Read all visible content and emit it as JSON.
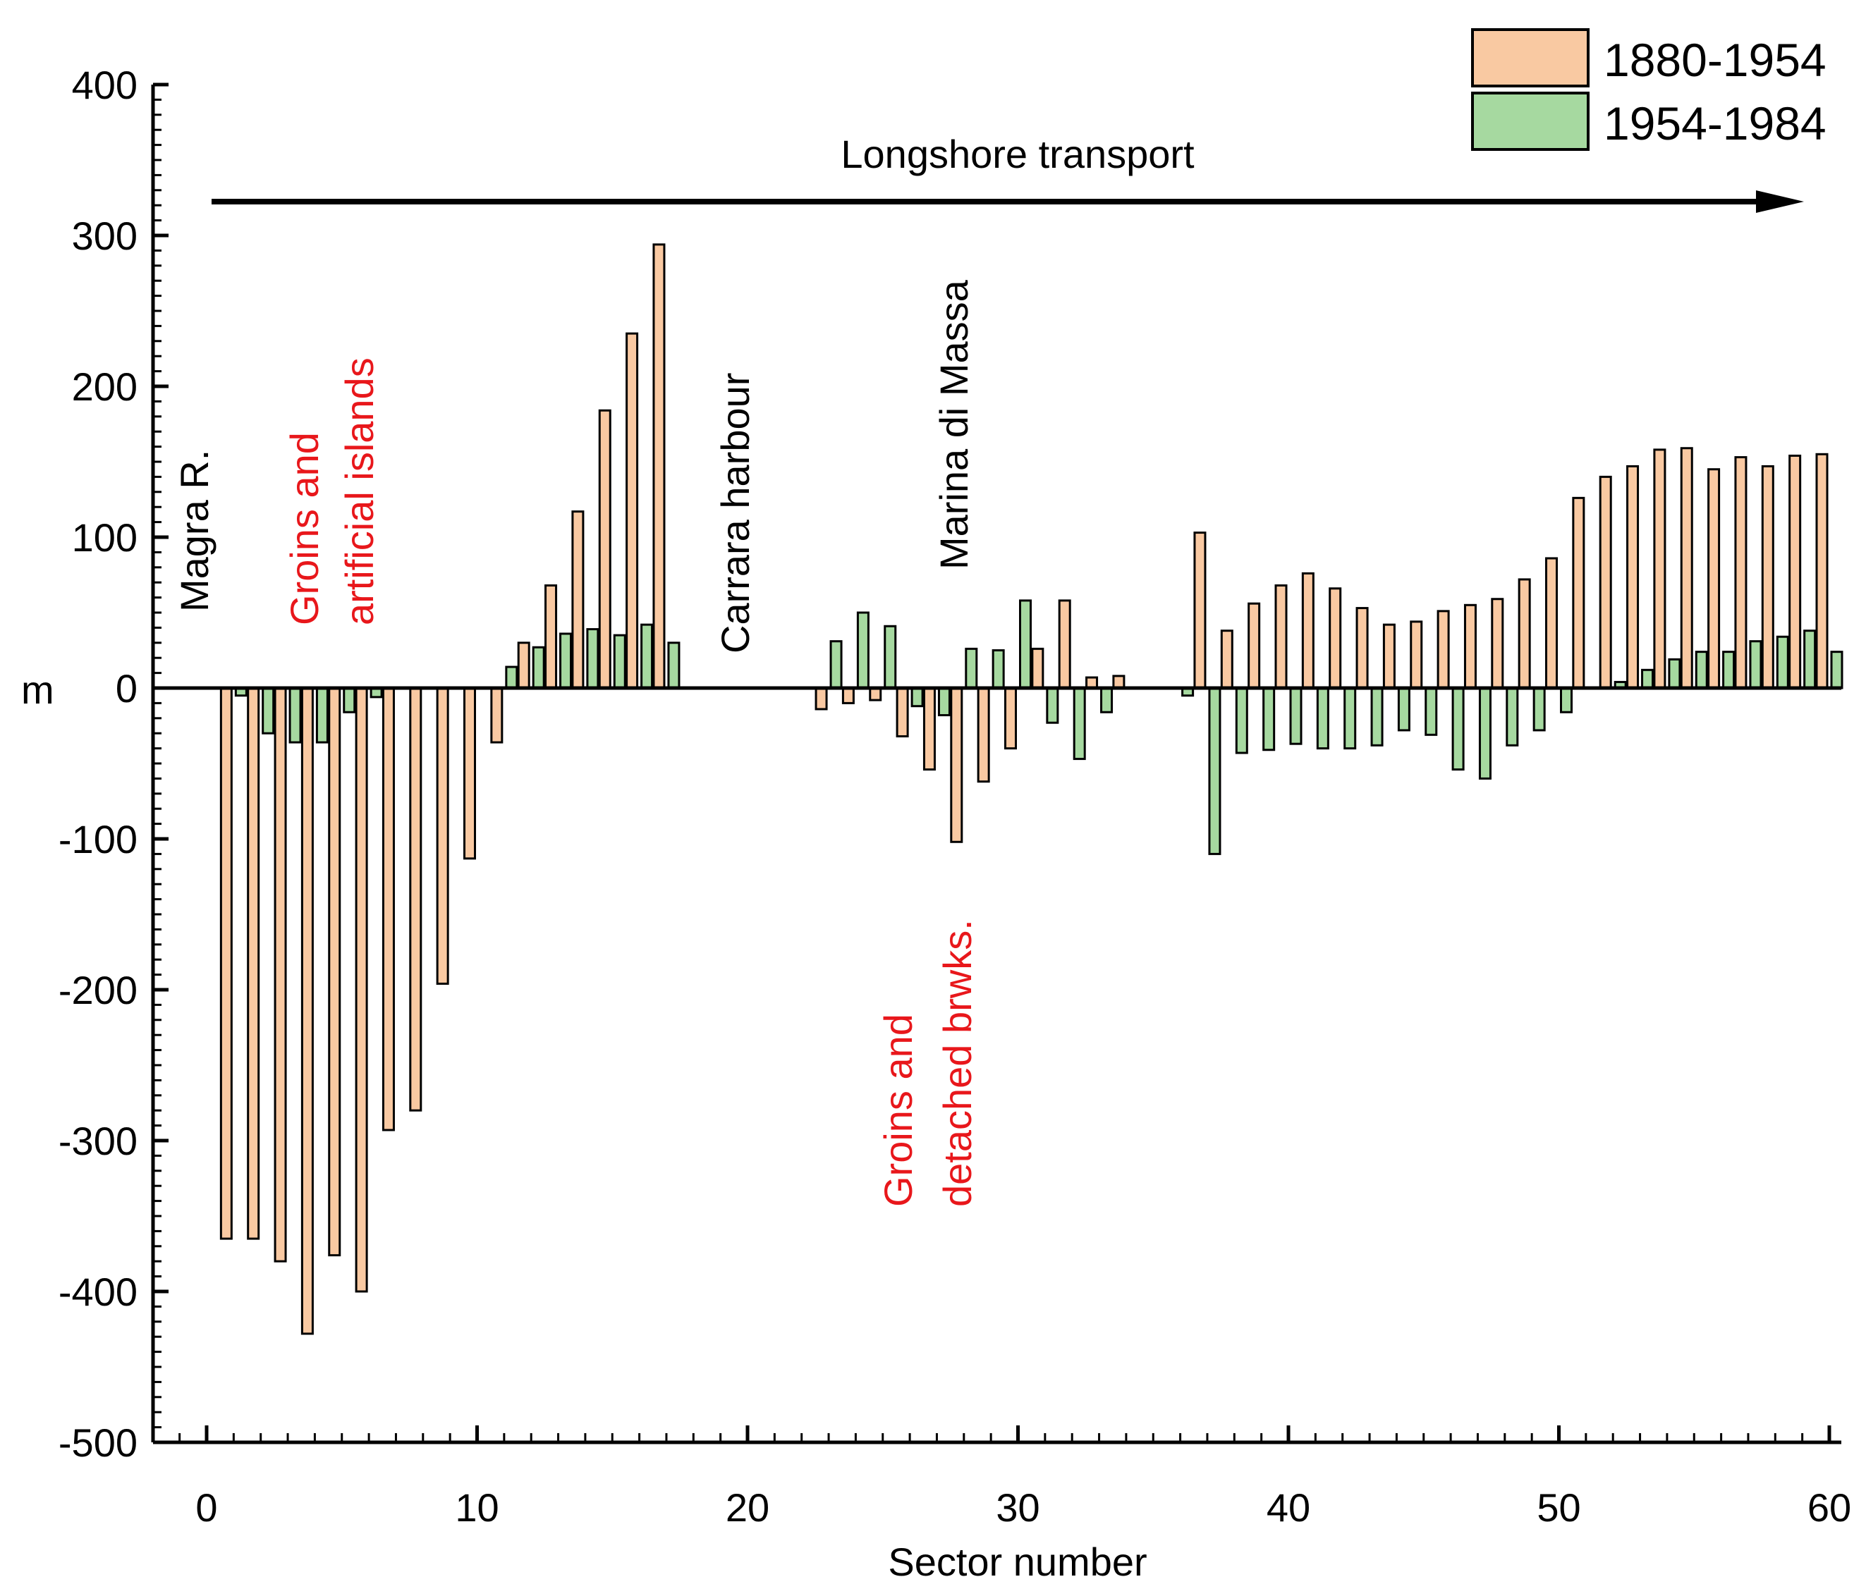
{
  "chart_data": {
    "type": "bar",
    "xlabel": "Sector number",
    "ylabel": "m",
    "xlim": [
      -2,
      60.5
    ],
    "ylim": [
      -500,
      400
    ],
    "xticks": [
      0,
      10,
      20,
      30,
      40,
      50,
      60
    ],
    "yticks": [
      -500,
      -400,
      -300,
      -200,
      -100,
      0,
      100,
      200,
      300,
      400
    ],
    "x_tick_labels": [
      "0",
      "10",
      "20",
      "30",
      "40",
      "50",
      "60"
    ],
    "y_tick_labels": [
      "-500",
      "-400",
      "-300",
      "-200",
      "-100",
      "0",
      "100",
      "200",
      "300",
      "400"
    ],
    "legend": {
      "position": "top-right",
      "entries": [
        "1880-1954",
        "1954-1984"
      ]
    },
    "colors": {
      "s1880": "#f9c9a2",
      "s1954": "#a6d9a0",
      "edge": "#000000"
    },
    "series": [
      {
        "name": "1880-1954",
        "values": [
          {
            "x": 1,
            "y": -365
          },
          {
            "x": 2,
            "y": -365
          },
          {
            "x": 3,
            "y": -380
          },
          {
            "x": 4,
            "y": -428
          },
          {
            "x": 5,
            "y": -376
          },
          {
            "x": 6,
            "y": -400
          },
          {
            "x": 7,
            "y": -293
          },
          {
            "x": 8,
            "y": -280
          },
          {
            "x": 9,
            "y": -196
          },
          {
            "x": 10,
            "y": -113
          },
          {
            "x": 11,
            "y": -36
          },
          {
            "x": 12,
            "y": 30
          },
          {
            "x": 13,
            "y": 68
          },
          {
            "x": 14,
            "y": 117
          },
          {
            "x": 15,
            "y": 184
          },
          {
            "x": 16,
            "y": 235
          },
          {
            "x": 17,
            "y": 294
          },
          {
            "x": 23,
            "y": -14
          },
          {
            "x": 24,
            "y": -10
          },
          {
            "x": 25,
            "y": -8
          },
          {
            "x": 26,
            "y": -32
          },
          {
            "x": 27,
            "y": -54
          },
          {
            "x": 28,
            "y": -102
          },
          {
            "x": 29,
            "y": -62
          },
          {
            "x": 30,
            "y": -40
          },
          {
            "x": 31,
            "y": 26
          },
          {
            "x": 32,
            "y": 58
          },
          {
            "x": 33,
            "y": 7
          },
          {
            "x": 34,
            "y": 8
          },
          {
            "x": 37,
            "y": 103
          },
          {
            "x": 38,
            "y": 38
          },
          {
            "x": 39,
            "y": 56
          },
          {
            "x": 40,
            "y": 68
          },
          {
            "x": 41,
            "y": 76
          },
          {
            "x": 42,
            "y": 66
          },
          {
            "x": 43,
            "y": 53
          },
          {
            "x": 44,
            "y": 42
          },
          {
            "x": 45,
            "y": 44
          },
          {
            "x": 46,
            "y": 51
          },
          {
            "x": 47,
            "y": 55
          },
          {
            "x": 48,
            "y": 59
          },
          {
            "x": 49,
            "y": 72
          },
          {
            "x": 50,
            "y": 86
          },
          {
            "x": 51,
            "y": 126
          },
          {
            "x": 52,
            "y": 140
          },
          {
            "x": 53,
            "y": 147
          },
          {
            "x": 54,
            "y": 158
          },
          {
            "x": 55,
            "y": 159
          },
          {
            "x": 56,
            "y": 145
          },
          {
            "x": 57,
            "y": 153
          },
          {
            "x": 58,
            "y": 147
          },
          {
            "x": 59,
            "y": 154
          },
          {
            "x": 60,
            "y": 155
          }
        ]
      },
      {
        "name": "1954-1984",
        "values": [
          {
            "x": 1,
            "y": -5
          },
          {
            "x": 2,
            "y": -30
          },
          {
            "x": 3,
            "y": -36
          },
          {
            "x": 4,
            "y": -36
          },
          {
            "x": 5,
            "y": -16
          },
          {
            "x": 6,
            "y": -6
          },
          {
            "x": 11,
            "y": 14
          },
          {
            "x": 12,
            "y": 27
          },
          {
            "x": 13,
            "y": 36
          },
          {
            "x": 14,
            "y": 39
          },
          {
            "x": 15,
            "y": 35
          },
          {
            "x": 16,
            "y": 42
          },
          {
            "x": 17,
            "y": 30
          },
          {
            "x": 23,
            "y": 31
          },
          {
            "x": 24,
            "y": 50
          },
          {
            "x": 25,
            "y": 41
          },
          {
            "x": 26,
            "y": -12
          },
          {
            "x": 27,
            "y": -18
          },
          {
            "x": 28,
            "y": 26
          },
          {
            "x": 29,
            "y": 25
          },
          {
            "x": 30,
            "y": 58
          },
          {
            "x": 31,
            "y": -23
          },
          {
            "x": 32,
            "y": -47
          },
          {
            "x": 33,
            "y": -16
          },
          {
            "x": 36,
            "y": -5
          },
          {
            "x": 37,
            "y": -110
          },
          {
            "x": 38,
            "y": -43
          },
          {
            "x": 39,
            "y": -41
          },
          {
            "x": 40,
            "y": -37
          },
          {
            "x": 41,
            "y": -40
          },
          {
            "x": 42,
            "y": -40
          },
          {
            "x": 43,
            "y": -38
          },
          {
            "x": 44,
            "y": -28
          },
          {
            "x": 45,
            "y": -31
          },
          {
            "x": 46,
            "y": -54
          },
          {
            "x": 47,
            "y": -60
          },
          {
            "x": 48,
            "y": -38
          },
          {
            "x": 49,
            "y": -28
          },
          {
            "x": 50,
            "y": -16
          },
          {
            "x": 52,
            "y": 4
          },
          {
            "x": 53,
            "y": 12
          },
          {
            "x": 54,
            "y": 19
          },
          {
            "x": 55,
            "y": 24
          },
          {
            "x": 56,
            "y": 24
          },
          {
            "x": 57,
            "y": 31
          },
          {
            "x": 58,
            "y": 34
          },
          {
            "x": 59,
            "y": 38
          },
          {
            "x": 60,
            "y": 24
          }
        ]
      }
    ],
    "annotations": [
      {
        "text": "Longshore transport",
        "kind": "arrow-label"
      },
      {
        "text": "Magra R.",
        "color": "black"
      },
      {
        "text": "Groins and",
        "color": "red"
      },
      {
        "text": "artificial islands",
        "color": "red"
      },
      {
        "text": "Carrara harbour",
        "color": "black"
      },
      {
        "text": "Marina di Massa",
        "color": "black"
      },
      {
        "text": "Groins and",
        "color": "red"
      },
      {
        "text": "detached brwks.",
        "color": "red"
      }
    ]
  }
}
